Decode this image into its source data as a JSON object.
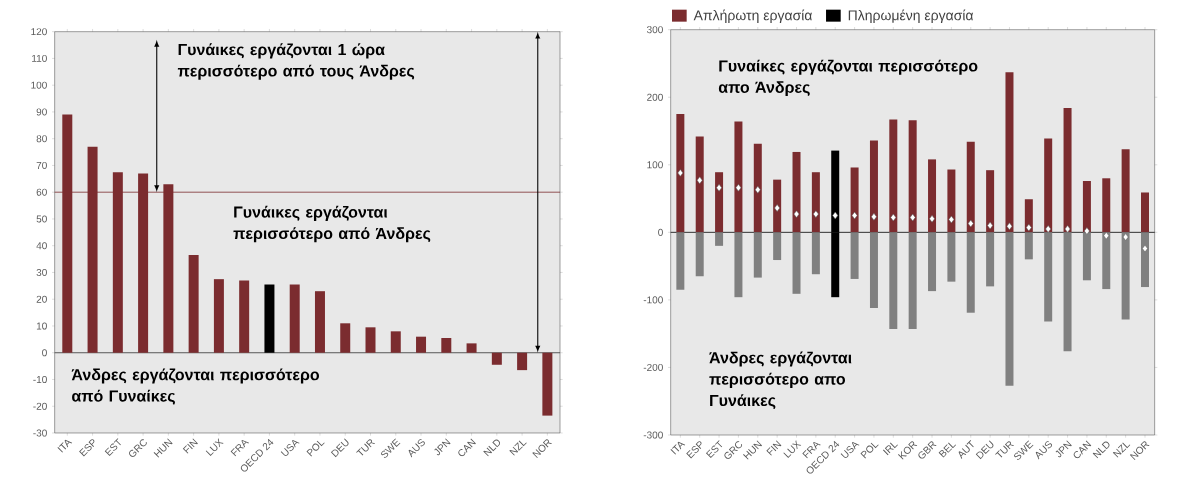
{
  "chart_data": [
    {
      "type": "bar",
      "categories": [
        "ITA",
        "ESP",
        "EST",
        "GRC",
        "HUN",
        "FIN",
        "LUX",
        "FRA",
        "OECD 24",
        "USA",
        "POL",
        "DEU",
        "TUR",
        "SWE",
        "AUS",
        "JPN",
        "CAN",
        "NLD",
        "NZL",
        "NOR"
      ],
      "values": [
        89,
        77,
        67.5,
        67,
        63,
        36.5,
        27.5,
        27,
        25.5,
        25.5,
        23,
        11,
        9.5,
        8,
        6,
        5.5,
        3.5,
        -4.5,
        -6.5,
        -23.5
      ],
      "colors": [
        "#7b2c2f",
        "#7b2c2f",
        "#7b2c2f",
        "#7b2c2f",
        "#7b2c2f",
        "#7b2c2f",
        "#7b2c2f",
        "#7b2c2f",
        "#000000",
        "#7b2c2f",
        "#7b2c2f",
        "#7b2c2f",
        "#7b2c2f",
        "#7b2c2f",
        "#7b2c2f",
        "#7b2c2f",
        "#7b2c2f",
        "#7b2c2f",
        "#7b2c2f",
        "#7b2c2f"
      ],
      "ylim": [
        -30,
        120
      ],
      "yticks": [
        -30,
        -20,
        -10,
        0,
        10,
        20,
        30,
        40,
        50,
        60,
        70,
        80,
        90,
        100,
        110,
        120
      ],
      "ref_lines": [
        {
          "axis": "y",
          "value": 60,
          "color": "#7b2c2f"
        },
        {
          "axis": "y",
          "value": 0,
          "color": "#333333"
        }
      ],
      "annotations": [
        "Γυνάικες εργάζονται 1 ώρα περισσότερο από τους Άνδρες",
        "Γυνάικες εργάζονται περισσότερο από Άνδρες",
        "Άνδρες εργάζονται περισσότερο από Γυναίκες"
      ]
    },
    {
      "type": "bar",
      "categories": [
        "ITA",
        "ESP",
        "EST",
        "GRC",
        "HUN",
        "FIN",
        "LUX",
        "FRA",
        "OECD 24",
        "USA",
        "POL",
        "IRL",
        "KOR",
        "GBR",
        "BEL",
        "AUT",
        "DEU",
        "TUR",
        "SWE",
        "AUS",
        "JPN",
        "CAN",
        "NLD",
        "NZL",
        "NOR"
      ],
      "series": [
        {
          "name": "Απλήρωτη εργασία",
          "type": "bar",
          "color": "#7b2c2f",
          "colors": [
            "#7b2c2f",
            "#7b2c2f",
            "#7b2c2f",
            "#7b2c2f",
            "#7b2c2f",
            "#7b2c2f",
            "#7b2c2f",
            "#7b2c2f",
            "#000000",
            "#7b2c2f",
            "#7b2c2f",
            "#7b2c2f",
            "#7b2c2f",
            "#7b2c2f",
            "#7b2c2f",
            "#7b2c2f",
            "#7b2c2f",
            "#7b2c2f",
            "#7b2c2f",
            "#7b2c2f",
            "#7b2c2f",
            "#7b2c2f",
            "#7b2c2f",
            "#7b2c2f",
            "#7b2c2f"
          ],
          "values": [
            175,
            142,
            89,
            164,
            131,
            78,
            119,
            89,
            121,
            96,
            136,
            167,
            166,
            108,
            93,
            134,
            92,
            237,
            49,
            139,
            184,
            76,
            80,
            123,
            59
          ]
        },
        {
          "name": "Πληρωμένη εργασία",
          "type": "bar",
          "color": "#000000",
          "colors": [
            "#808080",
            "#808080",
            "#808080",
            "#808080",
            "#808080",
            "#808080",
            "#808080",
            "#808080",
            "#000000",
            "#808080",
            "#808080",
            "#808080",
            "#808080",
            "#808080",
            "#808080",
            "#808080",
            "#808080",
            "#808080",
            "#808080",
            "#808080",
            "#808080",
            "#808080",
            "#808080",
            "#808080",
            "#808080"
          ],
          "values": [
            -85,
            -65,
            -20,
            -96,
            -67,
            -41,
            -91,
            -62,
            -96,
            -69,
            -112,
            -143,
            -143,
            -87,
            -73,
            -119,
            -80,
            -227,
            -40,
            -132,
            -176,
            -71,
            -84,
            -129,
            -81
          ]
        },
        {
          "type": "scatter",
          "color": "#ffffff",
          "marker": "diamond",
          "values": [
            88,
            77,
            66,
            66,
            63,
            36,
            27,
            27,
            25,
            25,
            23,
            22,
            22,
            20,
            19,
            13,
            10,
            9,
            7,
            5,
            5,
            2,
            -5,
            -7,
            -24
          ]
        }
      ],
      "ylim": [
        -300,
        300
      ],
      "yticks": [
        -300,
        -200,
        -100,
        0,
        100,
        200,
        300
      ],
      "ref_lines": [
        {
          "axis": "y",
          "value": 0,
          "color": "#000000"
        }
      ],
      "legend": "top",
      "stacked": true,
      "annotations": [
        "Γυναίκες εργάζονται περισσότερο απο Άνδρες",
        "Άνδρες εργάζονται περισσότερο απο Γυνάικες"
      ]
    }
  ]
}
